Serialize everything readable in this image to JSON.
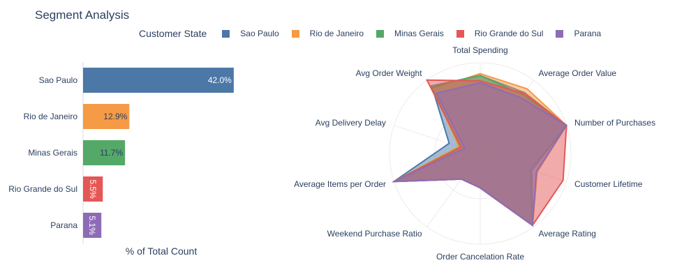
{
  "title": "Segment Analysis",
  "legend": {
    "title": "Customer State",
    "items": [
      {
        "name": "Sao Paulo",
        "color": "#4c78a8"
      },
      {
        "name": "Rio de Janeiro",
        "color": "#f59a45"
      },
      {
        "name": "Minas Gerais",
        "color": "#54a868"
      },
      {
        "name": "Rio Grande do Sul",
        "color": "#e45756"
      },
      {
        "name": "Parana",
        "color": "#8e6bb6"
      }
    ]
  },
  "chart_data": [
    {
      "type": "bar",
      "orientation": "horizontal",
      "categories": [
        "Sao Paulo",
        "Rio de Janeiro",
        "Minas Gerais",
        "Rio Grande do Sul",
        "Parana"
      ],
      "values": [
        42.0,
        12.9,
        11.7,
        5.5,
        5.1
      ],
      "labels": [
        "42.0%",
        "12.9%",
        "11.7%",
        "5.5%",
        "5.1%"
      ],
      "xlabel": "% of Total Count",
      "xlim": [
        0,
        43
      ]
    },
    {
      "type": "radar",
      "axes": [
        "Total Spending",
        "Average Order Value",
        "Number of Purchases",
        "Customer Lifetime",
        "Average Rating",
        "Order Cancelation Rate",
        "Weekend Purchase Ratio",
        "Average Items per Order",
        "Avg Delivery Delay",
        "Avg Order Weight"
      ],
      "range": [
        0,
        1
      ],
      "series": [
        {
          "name": "Sao Paulo",
          "values": [
            0.86,
            0.83,
            1.0,
            0.58,
            0.98,
            0.38,
            0.35,
            1.0,
            0.36,
            0.9
          ]
        },
        {
          "name": "Rio de Janeiro",
          "values": [
            0.88,
            0.88,
            1.0,
            0.66,
            0.98,
            0.38,
            0.35,
            1.0,
            0.25,
            0.88
          ]
        },
        {
          "name": "Minas Gerais",
          "values": [
            0.86,
            0.8,
            1.0,
            0.6,
            0.98,
            0.38,
            0.35,
            1.0,
            0.23,
            0.92
          ]
        },
        {
          "name": "Rio Grande do Sul",
          "values": [
            0.8,
            0.82,
            1.0,
            0.96,
            0.98,
            0.38,
            0.35,
            1.0,
            0.22,
            1.0
          ]
        },
        {
          "name": "Parana",
          "values": [
            0.78,
            0.76,
            1.0,
            0.65,
            0.98,
            0.38,
            0.35,
            1.0,
            0.18,
            0.82
          ]
        }
      ]
    }
  ]
}
